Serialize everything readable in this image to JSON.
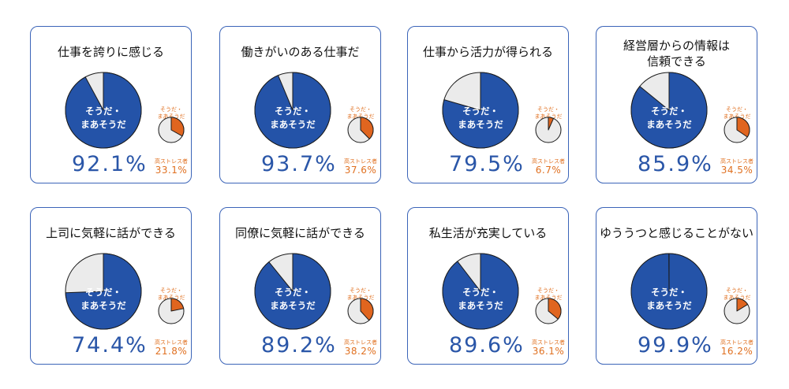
{
  "labels": {
    "main_line1": "そうだ・",
    "main_line2": "まあそうだ",
    "small_line1": "そうだ・",
    "small_line2": "まあそうだ",
    "high_stress": "高ストレス者"
  },
  "colors": {
    "main_fill": "#2453a8",
    "rest_fill": "#ebebeb",
    "small_fill": "#e0651f",
    "outline": "#1a1a1a",
    "border": "#3b64b8",
    "big_pct_text": "#2a56a8",
    "small_text": "#e07020"
  },
  "chart_data": [
    {
      "type": "pie",
      "title": "仕事を誇りに感じる",
      "values": [
        92.1,
        7.9
      ],
      "value_label": "92.1%",
      "high_stress_value": 33.1,
      "high_stress_label": "33.1%"
    },
    {
      "type": "pie",
      "title": "働きがいのある仕事だ",
      "values": [
        93.7,
        6.3
      ],
      "value_label": "93.7%",
      "high_stress_value": 37.6,
      "high_stress_label": "37.6%"
    },
    {
      "type": "pie",
      "title": "仕事から活力が得られる",
      "values": [
        79.5,
        20.5
      ],
      "value_label": "79.5%",
      "high_stress_value": 6.7,
      "high_stress_label": "6.7%"
    },
    {
      "type": "pie",
      "title": "経営層からの情報は信頼できる",
      "title_lines": [
        "経営層からの情報は",
        "信頼できる"
      ],
      "values": [
        85.9,
        14.1
      ],
      "value_label": "85.9%",
      "high_stress_value": 34.5,
      "high_stress_label": "34.5%"
    },
    {
      "type": "pie",
      "title": "上司に気軽に話ができる",
      "values": [
        74.4,
        25.6
      ],
      "value_label": "74.4%",
      "high_stress_value": 21.8,
      "high_stress_label": "21.8%"
    },
    {
      "type": "pie",
      "title": "同僚に気軽に話ができる",
      "values": [
        89.2,
        10.8
      ],
      "value_label": "89.2%",
      "high_stress_value": 38.2,
      "high_stress_label": "38.2%"
    },
    {
      "type": "pie",
      "title": "私生活が充実している",
      "values": [
        89.6,
        10.4
      ],
      "value_label": "89.6%",
      "high_stress_value": 36.1,
      "high_stress_label": "36.1%"
    },
    {
      "type": "pie",
      "title": "ゆううつと感じることがない",
      "values": [
        99.9,
        0.1
      ],
      "value_label": "99.9%",
      "high_stress_value": 16.2,
      "high_stress_label": "16.2%"
    }
  ]
}
